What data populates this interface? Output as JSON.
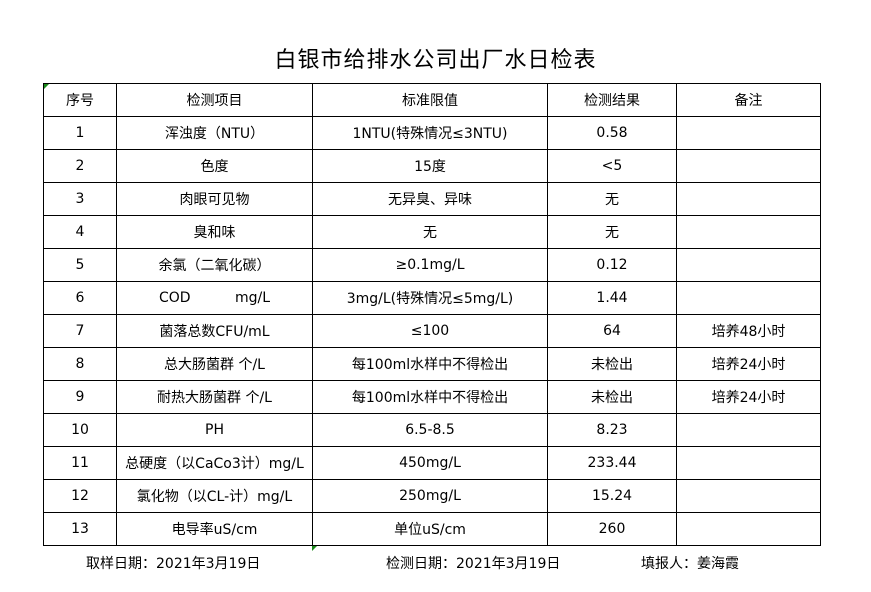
{
  "title": "白银市给排水公司出厂水日检表",
  "headers": [
    "序号",
    "检测项目",
    "标准限值",
    "检测结果",
    "备注"
  ],
  "rows": [
    [
      "1",
      "浑浊度（NTU）",
      "1NTU(特殊情况≤3NTU)",
      "0.58",
      ""
    ],
    [
      "2",
      "色度",
      "15度",
      "<5",
      ""
    ],
    [
      "3",
      "肉眼可见物",
      "无异臭、异味",
      "无",
      ""
    ],
    [
      "4",
      "臭和味",
      "无",
      "无",
      ""
    ],
    [
      "5",
      "余氯（二氧化碳）",
      "≥0.1mg/L",
      "0.12",
      ""
    ],
    [
      "6",
      "COD          mg/L",
      "3mg/L(特殊情况≤5mg/L)",
      "1.44",
      ""
    ],
    [
      "7",
      "菌落总数CFU/mL",
      "≤100",
      "64",
      "培养48小时"
    ],
    [
      "8",
      "总大肠菌群 个/L",
      "每100ml水样中不得检出",
      "未检出",
      "培养24小时"
    ],
    [
      "9",
      "耐热大肠菌群 个/L",
      "每100ml水样中不得检出",
      "未检出",
      "培养24小时"
    ],
    [
      "10",
      "PH",
      "6.5-8.5",
      "8.23",
      ""
    ],
    [
      "11",
      "总硬度（以CaCo3计）mg/L",
      "450mg/L",
      "233.44",
      ""
    ],
    [
      "12",
      "氯化物（以CL-计）mg/L",
      "250mg/L",
      "15.24",
      ""
    ],
    [
      "13",
      "电导率uS/cm",
      "单位uS/cm",
      "260",
      ""
    ]
  ],
  "footer": {
    "sampling_date": "取样日期：2021年3月19日",
    "test_date": "检测日期：2021年3月19日",
    "reporter": "填报人：姜海霞"
  },
  "colors": {
    "cell_marker": "#1a8a1a"
  }
}
